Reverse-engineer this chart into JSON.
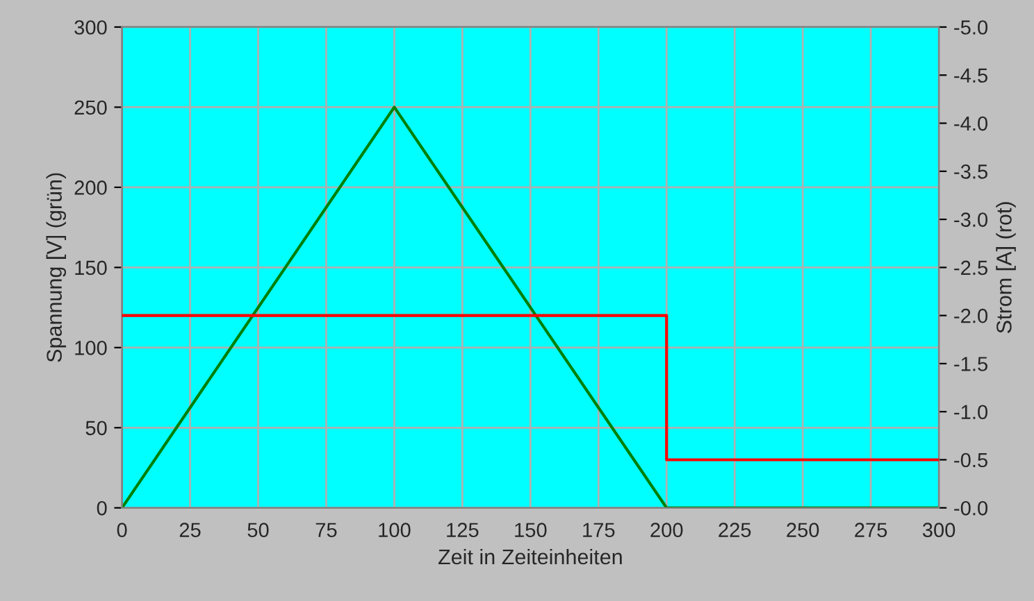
{
  "chart_data": {
    "type": "line",
    "xlabel": "Zeit in Zeiteinheiten",
    "ylabel": "Spannung [V] (grün)",
    "y2label": "Strom [A] (rot)",
    "series": [
      {
        "color": "#008000",
        "x": [
          0,
          100,
          200,
          300
        ],
        "values": [
          0,
          250,
          0,
          0
        ]
      },
      {
        "type": "step",
        "color": "#ff0000",
        "axis": "y2",
        "x": [
          0,
          200,
          300
        ],
        "values": [
          -2.0,
          -0.5,
          -0.5
        ]
      }
    ],
    "xlim": [
      0,
      300
    ],
    "xticks": [
      0,
      25,
      50,
      75,
      100,
      125,
      150,
      175,
      200,
      225,
      250,
      275,
      300
    ],
    "ylim": [
      0,
      300
    ],
    "yticks": [
      0,
      50,
      100,
      150,
      200,
      250,
      300
    ],
    "y2lim": [
      0,
      -5.0
    ],
    "y2ticks": [
      {
        "value": -5.0,
        "label": "-5.0"
      },
      {
        "value": -4.5,
        "label": "-4.5"
      },
      {
        "value": -4.0,
        "label": "-4.0"
      },
      {
        "value": -3.5,
        "label": "-3.5"
      },
      {
        "value": -3.0,
        "label": "-3.0"
      },
      {
        "value": -2.5,
        "label": "-2.5"
      },
      {
        "value": -2.0,
        "label": "-2.0"
      },
      {
        "value": -1.5,
        "label": "-1.5"
      },
      {
        "value": -1.0,
        "label": "-1.0"
      },
      {
        "value": -0.5,
        "label": "-0.5"
      },
      {
        "value": 0,
        "label": "-0.0"
      }
    ],
    "grid": true,
    "legend": false
  }
}
